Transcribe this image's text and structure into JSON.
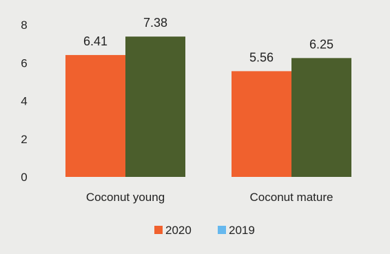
{
  "chart_data": {
    "type": "bar",
    "categories": [
      "Coconut young",
      "Coconut mature"
    ],
    "series": [
      {
        "name": "2020",
        "values": [
          6.41,
          5.56
        ],
        "color": "#f0612e"
      },
      {
        "name": "2019",
        "values": [
          7.38,
          6.25
        ],
        "color": "#4b5e2c",
        "legend_color": "#66b8ee"
      }
    ],
    "yticks": [
      "0",
      "2",
      "4",
      "6",
      "8"
    ],
    "ylim": [
      0,
      8
    ],
    "data_labels": [
      [
        "6.41",
        "5.56"
      ],
      [
        "7.38",
        "6.25"
      ]
    ],
    "legend_position": "bottom",
    "grid": false
  }
}
